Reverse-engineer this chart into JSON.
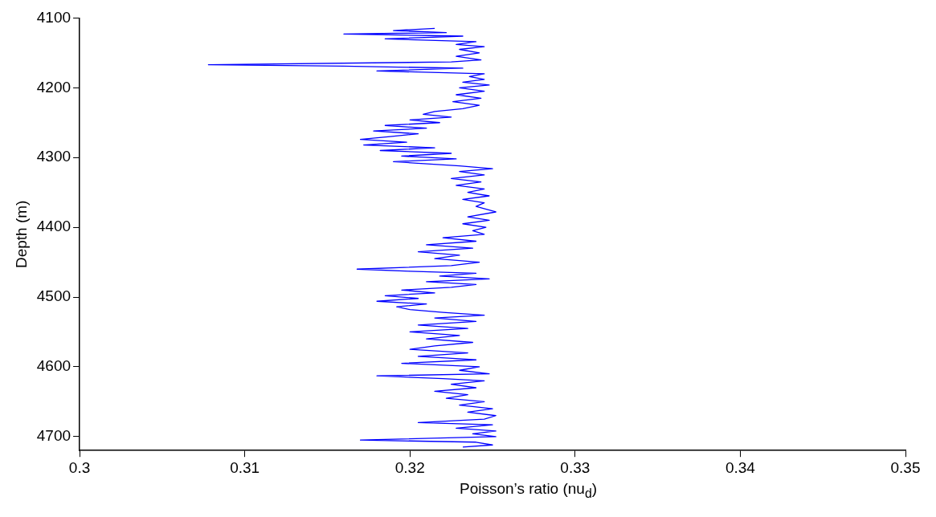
{
  "chart_data": {
    "type": "line",
    "xlabel": "Poisson’s ratio (nu$_{d}$)",
    "ylabel": "Depth (m)",
    "xlim": [
      0.3,
      0.35
    ],
    "xticks": [
      0.3,
      0.31,
      0.32,
      0.33,
      0.34,
      0.35
    ],
    "ylim": [
      4720,
      4100
    ],
    "yticks": [
      4100,
      4200,
      4300,
      4400,
      4500,
      4600,
      4700
    ],
    "grid": false,
    "legend": false,
    "marker": "none",
    "line_style": "solid",
    "series": [
      {
        "color": "#0000ff",
        "x": [
          0.3215,
          0.319,
          0.3222,
          0.316,
          0.3232,
          0.3185,
          0.324,
          0.3228,
          0.3245,
          0.323,
          0.3242,
          0.3228,
          0.3243,
          0.3225,
          0.3078,
          0.316,
          0.3232,
          0.318,
          0.3245,
          0.3236,
          0.3245,
          0.3232,
          0.3248,
          0.323,
          0.3245,
          0.3228,
          0.3243,
          0.3226,
          0.3242,
          0.3232,
          0.3215,
          0.3208,
          0.3225,
          0.32,
          0.3218,
          0.3185,
          0.321,
          0.3178,
          0.3205,
          0.3188,
          0.317,
          0.3198,
          0.3172,
          0.3215,
          0.3182,
          0.3225,
          0.3195,
          0.3228,
          0.319,
          0.323,
          0.325,
          0.323,
          0.3245,
          0.3225,
          0.3243,
          0.3228,
          0.3245,
          0.3235,
          0.3248,
          0.3232,
          0.3245,
          0.324,
          0.3252,
          0.3235,
          0.3248,
          0.3232,
          0.3246,
          0.3238,
          0.3245,
          0.322,
          0.324,
          0.321,
          0.3238,
          0.3205,
          0.323,
          0.3215,
          0.3242,
          0.3225,
          0.3168,
          0.32,
          0.324,
          0.3218,
          0.3248,
          0.321,
          0.324,
          0.3225,
          0.3195,
          0.3215,
          0.3185,
          0.3205,
          0.318,
          0.321,
          0.3192,
          0.32,
          0.322,
          0.3245,
          0.3215,
          0.324,
          0.3205,
          0.3235,
          0.32,
          0.323,
          0.321,
          0.3238,
          0.3215,
          0.32,
          0.3235,
          0.3205,
          0.324,
          0.3195,
          0.3242,
          0.323,
          0.3248,
          0.318,
          0.322,
          0.3245,
          0.3225,
          0.324,
          0.3215,
          0.3235,
          0.3222,
          0.3245,
          0.323,
          0.325,
          0.3235,
          0.3252,
          0.3245,
          0.3205,
          0.325,
          0.3228,
          0.3252,
          0.3238,
          0.3252,
          0.317,
          0.324,
          0.325,
          0.3232
        ],
        "values": [
          4115,
          4118,
          4121,
          4123,
          4126,
          4130,
          4134,
          4138,
          4141,
          4145,
          4150,
          4155,
          4160,
          4163,
          4167,
          4169,
          4172,
          4176,
          4180,
          4184,
          4188,
          4192,
          4196,
          4200,
          4205,
          4210,
          4215,
          4220,
          4225,
          4230,
          4234,
          4238,
          4242,
          4246,
          4250,
          4254,
          4258,
          4262,
          4266,
          4270,
          4274,
          4278,
          4282,
          4286,
          4290,
          4294,
          4298,
          4302,
          4306,
          4312,
          4316,
          4320,
          4325,
          4330,
          4335,
          4340,
          4345,
          4350,
          4355,
          4360,
          4365,
          4370,
          4378,
          4385,
          4390,
          4395,
          4400,
          4405,
          4410,
          4415,
          4420,
          4425,
          4430,
          4435,
          4440,
          4445,
          4450,
          4455,
          4460,
          4463,
          4466,
          4470,
          4474,
          4478,
          4482,
          4486,
          4490,
          4494,
          4498,
          4502,
          4506,
          4510,
          4514,
          4518,
          4522,
          4526,
          4530,
          4535,
          4540,
          4545,
          4550,
          4555,
          4560,
          4565,
          4570,
          4575,
          4580,
          4585,
          4590,
          4595,
          4600,
          4605,
          4610,
          4613,
          4617,
          4620,
          4625,
          4630,
          4635,
          4640,
          4645,
          4650,
          4655,
          4660,
          4665,
          4670,
          4675,
          4680,
          4683,
          4688,
          4692,
          4696,
          4700,
          4705,
          4708,
          4712,
          4715
        ]
      }
    ]
  }
}
